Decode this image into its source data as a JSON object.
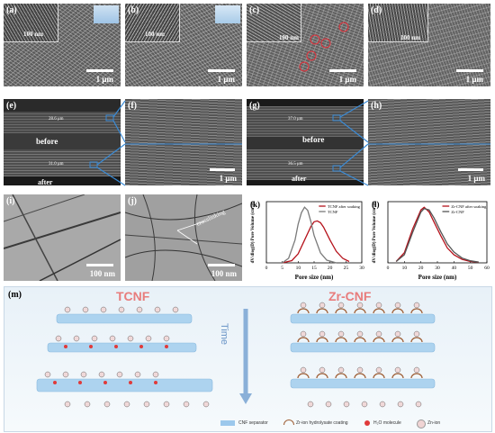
{
  "panels": {
    "a": {
      "label": "(a)",
      "scale": "1 μm",
      "inset_scale": "100 nm"
    },
    "b": {
      "label": "(b)",
      "scale": "1 μm",
      "inset_scale": "100 nm"
    },
    "c": {
      "label": "(c)",
      "scale": "1 μm",
      "inset_scale": "100 nm"
    },
    "d": {
      "label": "(d)",
      "scale": "1 μm",
      "inset_scale": "100 nm"
    },
    "e": {
      "label": "(e)",
      "before": "before",
      "after": "after",
      "thick_before": "28.6 μm",
      "thick_after": "31.0 μm"
    },
    "f": {
      "label": "(f)",
      "scale": "1 μm"
    },
    "g": {
      "label": "(g)",
      "before": "before",
      "after": "after",
      "thick_before": "37.0 μm",
      "thick_after": "36.5 μm"
    },
    "h": {
      "label": "(h)",
      "scale": "1 μm"
    },
    "i": {
      "label": "(i)",
      "scale": "100 nm"
    },
    "j": {
      "label": "(j)",
      "scale": "100 nm",
      "annotation": "crosslinking"
    },
    "m": {
      "label": "(m)",
      "left_title": "TCNF",
      "right_title": "Zr-CNF",
      "time": "Time"
    }
  },
  "legend": {
    "cnf": "CNF separator",
    "zr": "Zr-ion hydrolysate coating",
    "h2o": "H₂O molecule",
    "zn": "Zn-ion"
  },
  "colors": {
    "tcnf_title": "#e87c7c",
    "zrcnf_title": "#e87c7c",
    "series_red": "#b5121b",
    "series_gray": "#7a7a7a",
    "time_arrow": "#8ab0d8"
  },
  "chart_data": [
    {
      "type": "line",
      "panel": "(k)",
      "xlabel": "Pore size (nm)",
      "ylabel": "dV/dlog(D) Pore Volume (cm³/g)",
      "xlim": [
        0,
        30
      ],
      "xticks": [
        0,
        5,
        10,
        15,
        20,
        25,
        30
      ],
      "series": [
        {
          "name": "TCNF after soaking",
          "color": "#b5121b",
          "x": [
            5,
            8,
            10,
            12,
            14,
            15,
            16,
            17,
            18,
            20,
            22,
            24,
            26
          ],
          "y": [
            0.0,
            0.05,
            0.2,
            0.5,
            0.8,
            0.9,
            0.92,
            0.88,
            0.78,
            0.5,
            0.25,
            0.1,
            0.03
          ]
        },
        {
          "name": "TCNF",
          "color": "#7a7a7a",
          "x": [
            5,
            7,
            9,
            10,
            11,
            12,
            13,
            14,
            15,
            17,
            19,
            22
          ],
          "y": [
            0.0,
            0.1,
            0.5,
            0.85,
            1.1,
            1.22,
            1.15,
            0.9,
            0.6,
            0.22,
            0.06,
            0.0
          ]
        }
      ]
    },
    {
      "type": "line",
      "panel": "(l)",
      "xlabel": "Pore size (nm)",
      "ylabel": "dV/dlog(D) Pore Volume (cm³/g)",
      "xlim": [
        0,
        60
      ],
      "xticks": [
        0,
        10,
        20,
        30,
        40,
        50,
        60
      ],
      "series": [
        {
          "name": "Zr-CNF after soaking",
          "color": "#b5121b",
          "x": [
            5,
            10,
            15,
            20,
            22,
            25,
            28,
            32,
            36,
            40,
            45,
            50,
            55
          ],
          "y": [
            0.02,
            0.15,
            0.5,
            0.78,
            0.82,
            0.75,
            0.6,
            0.4,
            0.22,
            0.12,
            0.05,
            0.02,
            0.01
          ]
        },
        {
          "name": "Zr-CNF",
          "color": "#555555",
          "x": [
            5,
            10,
            15,
            20,
            22,
            25,
            28,
            32,
            36,
            40,
            45,
            50,
            55
          ],
          "y": [
            0.02,
            0.12,
            0.45,
            0.75,
            0.8,
            0.78,
            0.66,
            0.46,
            0.28,
            0.16,
            0.07,
            0.03,
            0.01
          ]
        }
      ]
    }
  ]
}
